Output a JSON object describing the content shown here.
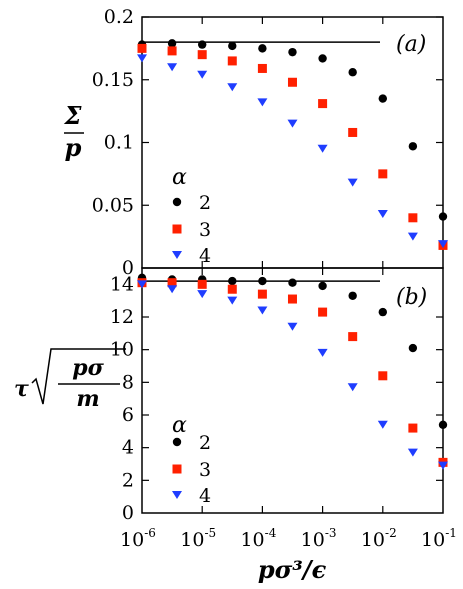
{
  "chart_data": [
    {
      "type": "scatter",
      "panel_label": "(a)",
      "ylabel_num": "Σ",
      "ylabel_den": "p",
      "xscale": "log",
      "xlim": [
        1e-06,
        0.1
      ],
      "ylim": [
        0,
        0.2
      ],
      "yticks": [
        "0",
        "0.05",
        "0.1",
        "0.15",
        "0.2"
      ],
      "reference_line": 0.18,
      "legend": {
        "title": "α",
        "placement": "lower-left"
      },
      "x": [
        1e-06,
        3.16e-06,
        1e-05,
        3.16e-05,
        0.0001,
        0.000316,
        0.001,
        0.00316,
        0.01,
        0.0316,
        0.1
      ],
      "series": [
        {
          "name": "2",
          "color": "#000000",
          "marker": "circle",
          "values": [
            0.178,
            0.179,
            0.178,
            0.177,
            0.175,
            0.172,
            0.167,
            0.156,
            0.135,
            0.097,
            0.041
          ]
        },
        {
          "name": "3",
          "color": "#ff2000",
          "marker": "square",
          "values": [
            0.175,
            0.173,
            0.17,
            0.165,
            0.159,
            0.148,
            0.131,
            0.108,
            0.075,
            0.04,
            0.018
          ]
        },
        {
          "name": "4",
          "color": "#1f3dff",
          "marker": "triangle-down",
          "values": [
            0.167,
            0.16,
            0.154,
            0.144,
            0.132,
            0.115,
            0.095,
            0.068,
            0.043,
            0.025,
            0.019
          ]
        }
      ]
    },
    {
      "type": "scatter",
      "panel_label": "(b)",
      "ylabel_prefix": "τ",
      "ylabel_num": "pσ",
      "ylabel_den": "m",
      "xscale": "log",
      "xlim": [
        1e-06,
        0.1
      ],
      "ylim": [
        0,
        15
      ],
      "yticks": [
        "0",
        "2",
        "4",
        "6",
        "8",
        "10",
        "12",
        "14"
      ],
      "reference_line": 14.2,
      "legend": {
        "title": "α",
        "placement": "lower-left"
      },
      "x": [
        1e-06,
        3.16e-06,
        1e-05,
        3.16e-05,
        0.0001,
        0.000316,
        0.001,
        0.00316,
        0.01,
        0.0316,
        0.1
      ],
      "series": [
        {
          "name": "2",
          "color": "#000000",
          "marker": "circle",
          "values": [
            14.4,
            14.3,
            14.3,
            14.2,
            14.2,
            14.1,
            13.9,
            13.3,
            12.3,
            10.1,
            5.4
          ]
        },
        {
          "name": "3",
          "color": "#ff2000",
          "marker": "square",
          "values": [
            14.1,
            14.1,
            14.0,
            13.7,
            13.4,
            13.1,
            12.3,
            10.8,
            8.4,
            5.2,
            3.1
          ]
        },
        {
          "name": "4",
          "color": "#1f3dff",
          "marker": "triangle-down",
          "values": [
            14.0,
            13.7,
            13.4,
            13.0,
            12.4,
            11.4,
            9.8,
            7.7,
            5.4,
            3.7,
            2.9
          ]
        }
      ]
    }
  ],
  "shared_xaxis": {
    "label": "pσ³/ϵ",
    "tick_base": "10",
    "tick_exponents": [
      "-6",
      "-5",
      "-4",
      "-3",
      "-2",
      "-1"
    ]
  }
}
